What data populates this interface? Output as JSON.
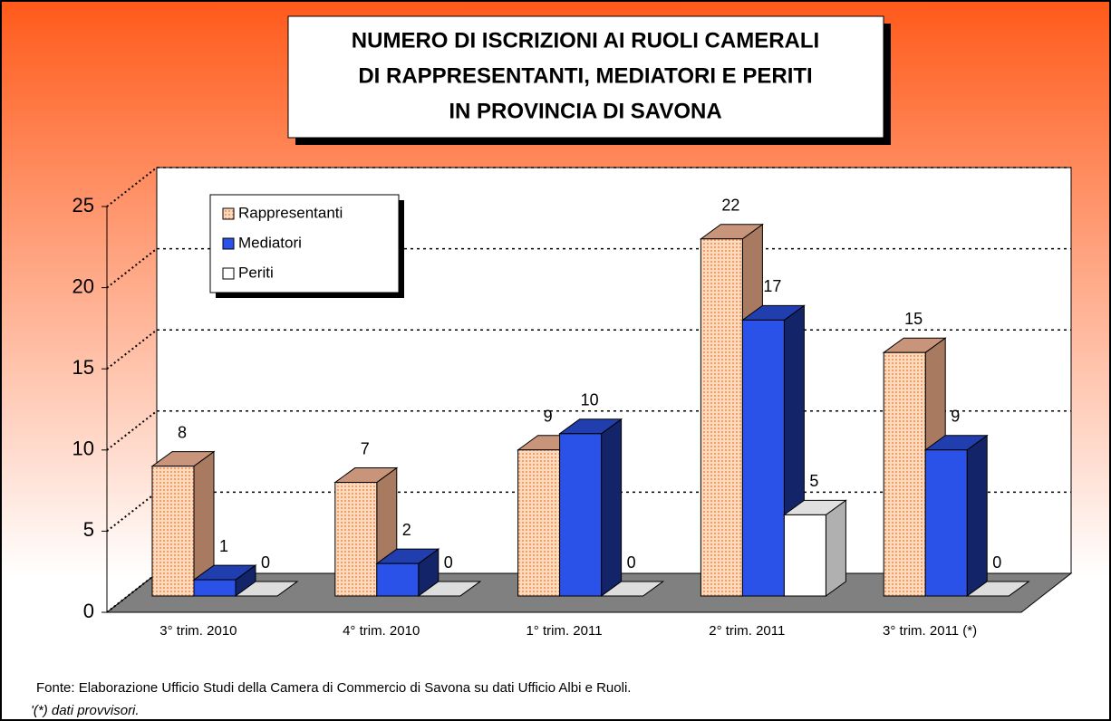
{
  "chart_data": {
    "type": "bar3d",
    "title": [
      "NUMERO DI ISCRIZIONI AI RUOLI CAMERALI",
      "DI RAPPRESENTANTI, MEDIATORI E PERITI",
      "IN PROVINCIA DI SAVONA"
    ],
    "categories": [
      "3° trim. 2010",
      "4° trim. 2010",
      "1° trim. 2011",
      "2° trim. 2011",
      "3° trim. 2011 (*)"
    ],
    "series": [
      {
        "name": "Rappresentanti",
        "color": "#f8c8a0",
        "values": [
          8,
          7,
          9,
          22,
          15
        ]
      },
      {
        "name": "Mediatori",
        "color": "#2a52e8",
        "values": [
          1,
          2,
          10,
          17,
          9
        ]
      },
      {
        "name": "Periti",
        "color": "#ffffff",
        "values": [
          0,
          0,
          0,
          5,
          0
        ]
      }
    ],
    "ylim": [
      0,
      25
    ],
    "yticks": [
      0,
      5,
      10,
      15,
      20,
      25
    ],
    "grid": true,
    "legend": "top-left",
    "notes": [
      "Fonte: Elaborazione Ufficio Studi della Camera di Commercio di Savona su dati Ufficio Albi e Ruoli.",
      "'(*) dati provvisori."
    ]
  }
}
